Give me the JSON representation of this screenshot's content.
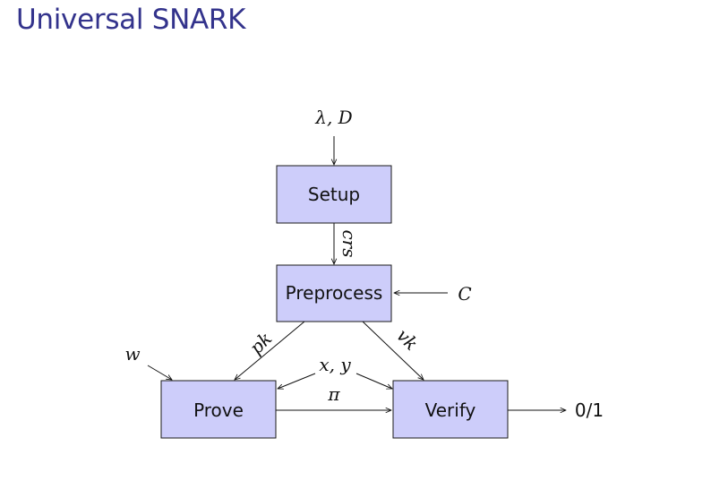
{
  "title": "Universal SNARK",
  "nodes": {
    "setup": "Setup",
    "preprocess": "Preprocess",
    "prove": "Prove",
    "verify": "Verify"
  },
  "labels": {
    "setup_input": "λ, D",
    "crs": "crs",
    "circuit": "C",
    "pk": "pk",
    "vk": "vk",
    "witness": "w",
    "statement": "x, y",
    "proof": "π",
    "output": "0/1"
  },
  "colors": {
    "title": "#33338c",
    "box_fill": "#cdcdfa"
  }
}
